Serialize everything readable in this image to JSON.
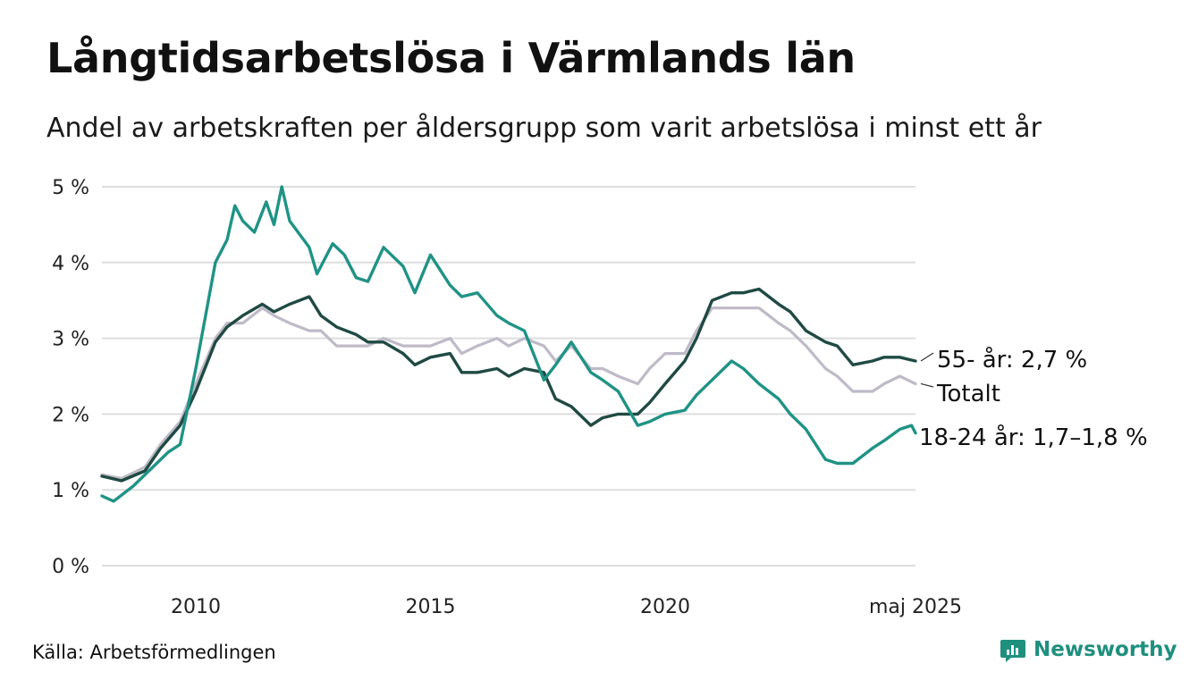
{
  "header": {
    "title": "Långtidsarbetslösa i Värmlands län",
    "subtitle": "Andel av arbetskraften per åldersgrupp som varit arbetslösa i minst ett år"
  },
  "footer": {
    "source": "Källa: Arbetsförmedlingen",
    "brand": "Newsworthy"
  },
  "colors": {
    "youth": "#1f9385",
    "senior": "#1f4a43",
    "total": "#bfbac8",
    "grid": "#dddddd"
  },
  "chart_data": {
    "type": "line",
    "title": "Långtidsarbetslösa i Värmlands län",
    "subtitle": "Andel av arbetskraften per åldersgrupp som varit arbetslösa i minst ett år",
    "xlabel": "",
    "ylabel": "",
    "ylim": [
      0,
      5
    ],
    "xlim": [
      "2008-01",
      "2025-05"
    ],
    "yticks": [
      {
        "value": 0,
        "label": "0 %"
      },
      {
        "value": 1,
        "label": "1 %"
      },
      {
        "value": 2,
        "label": "2 %"
      },
      {
        "value": 3,
        "label": "3 %"
      },
      {
        "value": 4,
        "label": "4 %"
      },
      {
        "value": 5,
        "label": "5 %"
      }
    ],
    "xticks": [
      {
        "value": "2010-01",
        "label": "2010"
      },
      {
        "value": "2015-01",
        "label": "2015"
      },
      {
        "value": "2020-01",
        "label": "2020"
      },
      {
        "value": "2025-05",
        "label": "maj 2025"
      }
    ],
    "grid": true,
    "legend": "direct labels at line ends (right)",
    "series": [
      {
        "key": "total",
        "label": "Totalt",
        "color": "#bfbac8",
        "points": [
          [
            "2008-01",
            1.2
          ],
          [
            "2008-06",
            1.15
          ],
          [
            "2008-12",
            1.3
          ],
          [
            "2009-04",
            1.6
          ],
          [
            "2009-09",
            1.9
          ],
          [
            "2010-01",
            2.4
          ],
          [
            "2010-06",
            3.0
          ],
          [
            "2010-09",
            3.2
          ],
          [
            "2011-01",
            3.2
          ],
          [
            "2011-06",
            3.4
          ],
          [
            "2011-09",
            3.3
          ],
          [
            "2012-01",
            3.2
          ],
          [
            "2012-06",
            3.1
          ],
          [
            "2012-09",
            3.1
          ],
          [
            "2013-01",
            2.9
          ],
          [
            "2013-06",
            2.9
          ],
          [
            "2013-09",
            2.9
          ],
          [
            "2014-01",
            3.0
          ],
          [
            "2014-06",
            2.9
          ],
          [
            "2014-09",
            2.9
          ],
          [
            "2015-01",
            2.9
          ],
          [
            "2015-06",
            3.0
          ],
          [
            "2015-09",
            2.8
          ],
          [
            "2016-01",
            2.9
          ],
          [
            "2016-06",
            3.0
          ],
          [
            "2016-09",
            2.9
          ],
          [
            "2017-01",
            3.0
          ],
          [
            "2017-06",
            2.9
          ],
          [
            "2017-09",
            2.7
          ],
          [
            "2018-01",
            2.9
          ],
          [
            "2018-06",
            2.6
          ],
          [
            "2018-09",
            2.6
          ],
          [
            "2019-01",
            2.5
          ],
          [
            "2019-06",
            2.4
          ],
          [
            "2019-09",
            2.6
          ],
          [
            "2020-01",
            2.8
          ],
          [
            "2020-06",
            2.8
          ],
          [
            "2020-09",
            3.1
          ],
          [
            "2021-01",
            3.4
          ],
          [
            "2021-06",
            3.4
          ],
          [
            "2021-09",
            3.4
          ],
          [
            "2022-01",
            3.4
          ],
          [
            "2022-06",
            3.2
          ],
          [
            "2022-09",
            3.1
          ],
          [
            "2023-01",
            2.9
          ],
          [
            "2023-06",
            2.6
          ],
          [
            "2023-09",
            2.5
          ],
          [
            "2024-01",
            2.3
          ],
          [
            "2024-06",
            2.3
          ],
          [
            "2024-09",
            2.4
          ],
          [
            "2025-01",
            2.5
          ],
          [
            "2025-05",
            2.4
          ]
        ]
      },
      {
        "key": "senior",
        "label": "55- år: 2,7 %",
        "color": "#1f4a43",
        "points": [
          [
            "2008-01",
            1.18
          ],
          [
            "2008-06",
            1.12
          ],
          [
            "2008-12",
            1.25
          ],
          [
            "2009-04",
            1.55
          ],
          [
            "2009-09",
            1.85
          ],
          [
            "2010-01",
            2.3
          ],
          [
            "2010-06",
            2.95
          ],
          [
            "2010-09",
            3.15
          ],
          [
            "2011-01",
            3.3
          ],
          [
            "2011-06",
            3.45
          ],
          [
            "2011-09",
            3.35
          ],
          [
            "2012-01",
            3.45
          ],
          [
            "2012-06",
            3.55
          ],
          [
            "2012-09",
            3.3
          ],
          [
            "2013-01",
            3.15
          ],
          [
            "2013-06",
            3.05
          ],
          [
            "2013-09",
            2.95
          ],
          [
            "2014-01",
            2.95
          ],
          [
            "2014-06",
            2.8
          ],
          [
            "2014-09",
            2.65
          ],
          [
            "2015-01",
            2.75
          ],
          [
            "2015-06",
            2.8
          ],
          [
            "2015-09",
            2.55
          ],
          [
            "2016-01",
            2.55
          ],
          [
            "2016-06",
            2.6
          ],
          [
            "2016-09",
            2.5
          ],
          [
            "2017-01",
            2.6
          ],
          [
            "2017-06",
            2.55
          ],
          [
            "2017-09",
            2.2
          ],
          [
            "2018-01",
            2.1
          ],
          [
            "2018-06",
            1.85
          ],
          [
            "2018-09",
            1.95
          ],
          [
            "2019-01",
            2.0
          ],
          [
            "2019-06",
            2.0
          ],
          [
            "2019-09",
            2.15
          ],
          [
            "2020-01",
            2.4
          ],
          [
            "2020-06",
            2.7
          ],
          [
            "2020-09",
            3.0
          ],
          [
            "2021-01",
            3.5
          ],
          [
            "2021-06",
            3.6
          ],
          [
            "2021-09",
            3.6
          ],
          [
            "2022-01",
            3.65
          ],
          [
            "2022-06",
            3.45
          ],
          [
            "2022-09",
            3.35
          ],
          [
            "2023-01",
            3.1
          ],
          [
            "2023-06",
            2.95
          ],
          [
            "2023-09",
            2.9
          ],
          [
            "2024-01",
            2.65
          ],
          [
            "2024-06",
            2.7
          ],
          [
            "2024-09",
            2.75
          ],
          [
            "2025-01",
            2.75
          ],
          [
            "2025-05",
            2.7
          ]
        ]
      },
      {
        "key": "youth",
        "label": "18-24 år: 1,7–1,8 %",
        "color": "#1f9385",
        "points": [
          [
            "2008-01",
            0.92
          ],
          [
            "2008-04",
            0.85
          ],
          [
            "2008-09",
            1.05
          ],
          [
            "2009-01",
            1.25
          ],
          [
            "2009-06",
            1.5
          ],
          [
            "2009-09",
            1.6
          ],
          [
            "2010-01",
            2.6
          ],
          [
            "2010-06",
            4.0
          ],
          [
            "2010-09",
            4.3
          ],
          [
            "2010-11",
            4.75
          ],
          [
            "2011-01",
            4.55
          ],
          [
            "2011-04",
            4.4
          ],
          [
            "2011-07",
            4.8
          ],
          [
            "2011-09",
            4.5
          ],
          [
            "2011-11",
            5.0
          ],
          [
            "2012-01",
            4.55
          ],
          [
            "2012-06",
            4.2
          ],
          [
            "2012-08",
            3.85
          ],
          [
            "2012-12",
            4.25
          ],
          [
            "2013-03",
            4.1
          ],
          [
            "2013-06",
            3.8
          ],
          [
            "2013-09",
            3.75
          ],
          [
            "2014-01",
            4.2
          ],
          [
            "2014-06",
            3.95
          ],
          [
            "2014-09",
            3.6
          ],
          [
            "2015-01",
            4.1
          ],
          [
            "2015-06",
            3.7
          ],
          [
            "2015-09",
            3.55
          ],
          [
            "2016-01",
            3.6
          ],
          [
            "2016-06",
            3.3
          ],
          [
            "2016-09",
            3.2
          ],
          [
            "2017-01",
            3.1
          ],
          [
            "2017-06",
            2.45
          ],
          [
            "2017-09",
            2.65
          ],
          [
            "2018-01",
            2.95
          ],
          [
            "2018-06",
            2.55
          ],
          [
            "2018-09",
            2.45
          ],
          [
            "2019-01",
            2.3
          ],
          [
            "2019-06",
            1.85
          ],
          [
            "2019-09",
            1.9
          ],
          [
            "2020-01",
            2.0
          ],
          [
            "2020-06",
            2.05
          ],
          [
            "2020-09",
            2.25
          ],
          [
            "2021-01",
            2.45
          ],
          [
            "2021-06",
            2.7
          ],
          [
            "2021-09",
            2.6
          ],
          [
            "2022-01",
            2.4
          ],
          [
            "2022-06",
            2.2
          ],
          [
            "2022-09",
            2.0
          ],
          [
            "2023-01",
            1.8
          ],
          [
            "2023-06",
            1.4
          ],
          [
            "2023-09",
            1.35
          ],
          [
            "2024-01",
            1.35
          ],
          [
            "2024-06",
            1.55
          ],
          [
            "2024-09",
            1.65
          ],
          [
            "2025-01",
            1.8
          ],
          [
            "2025-04",
            1.85
          ],
          [
            "2025-05",
            1.75
          ]
        ]
      }
    ]
  }
}
